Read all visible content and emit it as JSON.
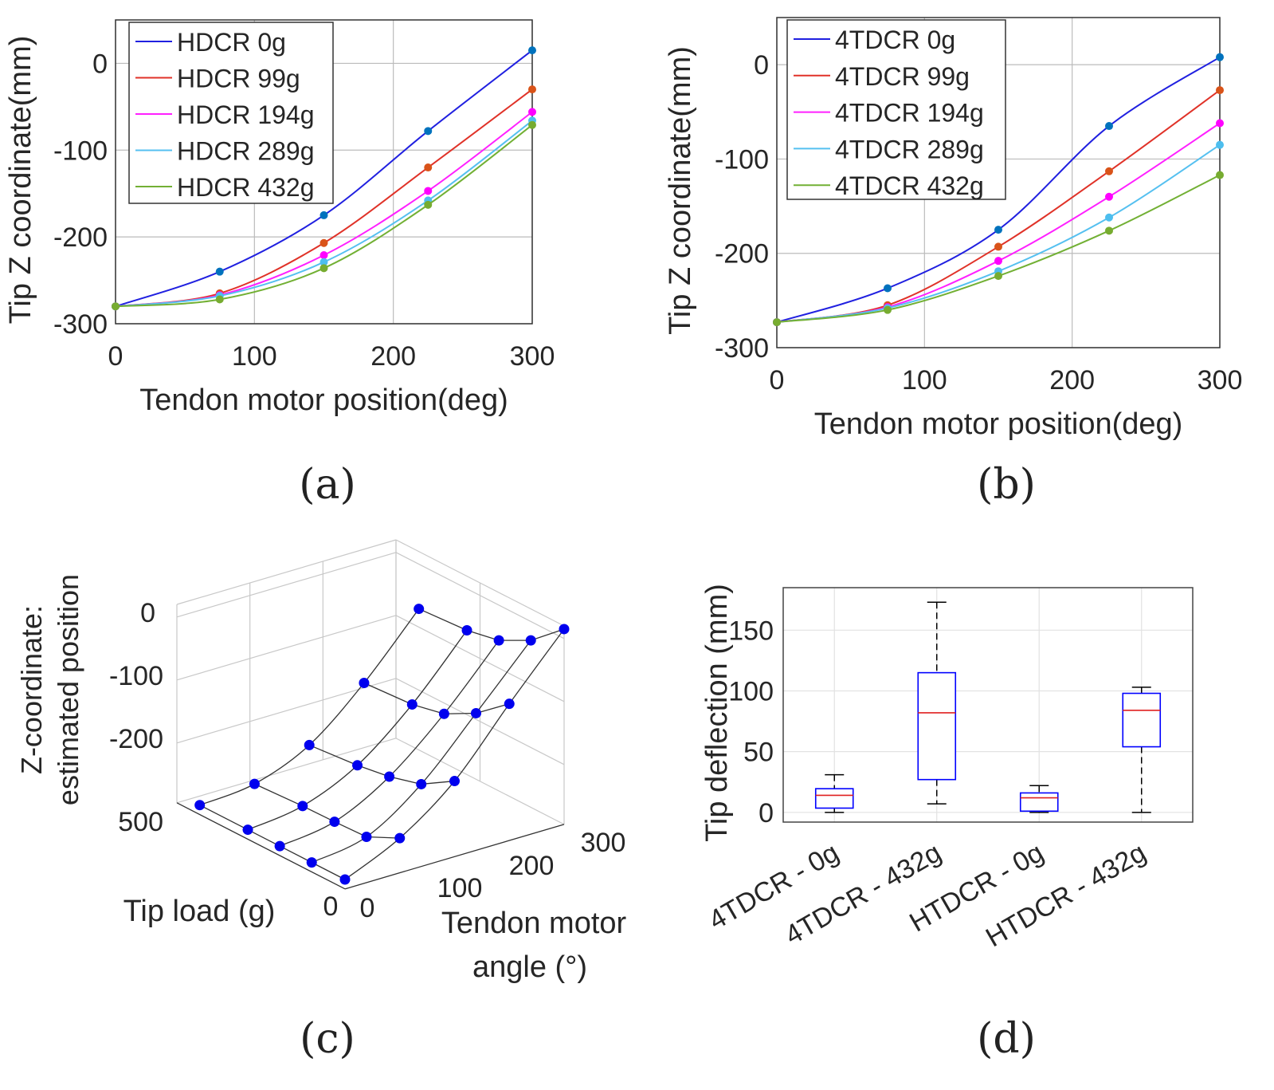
{
  "panel_labels": [
    "(a)",
    "(b)",
    "(c)",
    "(d)"
  ],
  "chart_data": [
    {
      "type": "line",
      "id": "a",
      "title": "",
      "xlabel": "Tendon motor position(deg)",
      "ylabel": "Tip Z coordinate(mm)",
      "xlim": [
        0,
        300
      ],
      "ylim": [
        -300,
        50
      ],
      "xticks": [
        0,
        100,
        200,
        300
      ],
      "yticks": [
        -300,
        -200,
        -100,
        0
      ],
      "grid": true,
      "legend_position": "top-left",
      "x": [
        0,
        75,
        150,
        225,
        300
      ],
      "series": [
        {
          "name": "HDCR 0g",
          "line_color": "#2020e0",
          "marker_color": "#0072bd",
          "values": [
            -280,
            -240,
            -175,
            -78,
            15
          ]
        },
        {
          "name": "HDCR  99g",
          "line_color": "#e03228",
          "marker_color": "#d95319",
          "values": [
            -280,
            -265,
            -207,
            -120,
            -30
          ]
        },
        {
          "name": "HDCR 194g",
          "line_color": "#ff20ff",
          "marker_color": "#ff00ff",
          "values": [
            -280,
            -267,
            -221,
            -147,
            -56
          ]
        },
        {
          "name": "HDCR 289g",
          "line_color": "#55c0f0",
          "marker_color": "#4dbeee",
          "values": [
            -280,
            -268,
            -229,
            -158,
            -66
          ]
        },
        {
          "name": "HDCR 432g",
          "line_color": "#72b034",
          "marker_color": "#77ac30",
          "values": [
            -280,
            -272,
            -236,
            -163,
            -71
          ]
        }
      ]
    },
    {
      "type": "line",
      "id": "b",
      "title": "",
      "xlabel": "Tendon motor position(deg)",
      "ylabel": "Tip Z coordinate(mm)",
      "xlim": [
        0,
        300
      ],
      "ylim": [
        -300,
        50
      ],
      "xticks": [
        0,
        100,
        200,
        300
      ],
      "yticks": [
        -300,
        -200,
        -100,
        0
      ],
      "grid": true,
      "legend_position": "top-left",
      "x": [
        0,
        75,
        150,
        225,
        300
      ],
      "series": [
        {
          "name": "4TDCR 0g",
          "line_color": "#2020e0",
          "marker_color": "#0072bd",
          "values": [
            -273,
            -237,
            -175,
            -65,
            8
          ]
        },
        {
          "name": "4TDCR 99g",
          "line_color": "#e03228",
          "marker_color": "#d95319",
          "values": [
            -273,
            -255,
            -193,
            -113,
            -27
          ]
        },
        {
          "name": "4TDCR 194g",
          "line_color": "#ff20ff",
          "marker_color": "#ff00ff",
          "values": [
            -273,
            -257,
            -208,
            -140,
            -62
          ]
        },
        {
          "name": "4TDCR 289g",
          "line_color": "#55c0f0",
          "marker_color": "#4dbeee",
          "values": [
            -273,
            -258,
            -219,
            -162,
            -85
          ]
        },
        {
          "name": "4TDCR 432g",
          "line_color": "#72b034",
          "marker_color": "#77ac30",
          "values": [
            -273,
            -260,
            -224,
            -176,
            -117
          ]
        }
      ]
    },
    {
      "type": "surface",
      "id": "c",
      "zlabel": [
        "Z-coordinate:",
        "estimated position"
      ],
      "ylabel": "Tip load (g)",
      "xlabel": [
        "Tendon motor",
        "angle (°)"
      ],
      "zticks": [
        "0",
        "-100",
        "-200"
      ],
      "load_ticks": [
        "0",
        "500"
      ],
      "tendon_ticks": [
        "0",
        "100",
        "200",
        "300"
      ],
      "tendon": [
        0,
        75,
        150,
        225,
        300
      ],
      "load": [
        0,
        99,
        194,
        289,
        432
      ],
      "z": [
        [
          -280,
          -240,
          -175,
          -78,
          15
        ],
        [
          -280,
          -265,
          -207,
          -120,
          -30
        ],
        [
          -280,
          -267,
          -221,
          -147,
          -56
        ],
        [
          -280,
          -268,
          -229,
          -158,
          -66
        ],
        [
          -280,
          -272,
          -236,
          -163,
          -71
        ]
      ],
      "marker_color": "#0000ee"
    },
    {
      "type": "box",
      "id": "d",
      "ylabel": "Tip deflection (mm)",
      "ylim": [
        -8,
        185
      ],
      "yticks": [
        0,
        50,
        100,
        150
      ],
      "categories": [
        "4TDCR - 0g",
        "4TDCR - 432g",
        "HTDCR - 0g",
        "HTDCR - 432g"
      ],
      "boxes": [
        {
          "min": 0,
          "q1": 3.5,
          "median": 14,
          "q3": 19.5,
          "max": 31
        },
        {
          "min": 7,
          "q1": 27,
          "median": 82,
          "q3": 115,
          "max": 173
        },
        {
          "min": 0,
          "q1": 1,
          "median": 12,
          "q3": 16,
          "max": 22
        },
        {
          "min": 0,
          "q1": 54,
          "median": 84,
          "q3": 98,
          "max": 103
        }
      ],
      "box_color": "#0000ff",
      "median_color": "#e02020"
    }
  ]
}
